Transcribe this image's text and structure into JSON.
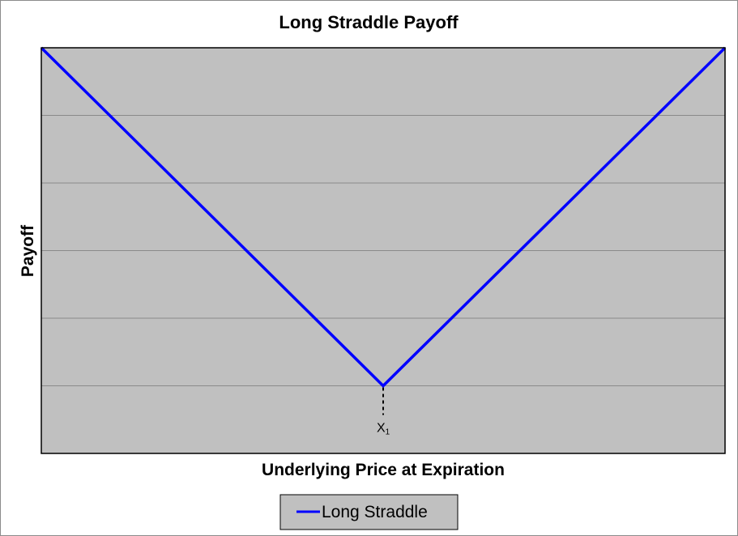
{
  "chart_data": {
    "type": "line",
    "title": "Long Straddle Payoff",
    "xlabel": "Underlying Price at Expiration",
    "ylabel": "Payoff",
    "x": [
      0,
      1,
      2
    ],
    "series": [
      {
        "name": "Long Straddle",
        "values": [
          5,
          0,
          5
        ],
        "color": "#0000ff"
      }
    ],
    "xlim": [
      0,
      2
    ],
    "ylim": [
      -1,
      5
    ],
    "y_gridlines": [
      0,
      1,
      2,
      3,
      4,
      5
    ],
    "tick_labels_shown": false,
    "annotations": [
      {
        "text": "X",
        "subscript": "1",
        "x": 1,
        "style": "dashed-drop-line"
      }
    ],
    "legend": {
      "position": "bottom-center"
    },
    "plot_background": "#c0c0c0",
    "gridline_color": "#8a8a8a",
    "grid": true
  }
}
